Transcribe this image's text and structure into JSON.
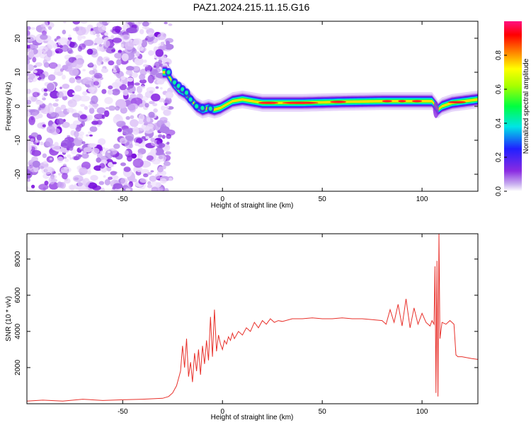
{
  "title": "PAZ1.2024.215.11.15.G16",
  "colors": {
    "snr_line": "#e8302a",
    "axes": "#000000",
    "background": "#ffffff"
  },
  "chart_data": [
    {
      "type": "heatmap",
      "xlabel": "Height of straight line (km)",
      "ylabel": "Frequency (Hz)",
      "xlim": [
        -98,
        128
      ],
      "ylim": [
        -25,
        25
      ],
      "xticks": [
        -50,
        0,
        50,
        100
      ],
      "yticks": [
        -20,
        -10,
        0,
        10,
        20
      ],
      "colorbar": {
        "label": "Normalized spectral amplitude",
        "range": [
          0.0,
          1.0
        ],
        "ticks": [
          0.0,
          0.2,
          0.4,
          0.6,
          0.8
        ],
        "colormap": "rainbow (purple-blue-cyan-green-yellow-red-magenta)"
      },
      "ridge": {
        "heights_km": [
          -28,
          -25,
          -22,
          -19,
          -16,
          -13,
          -10,
          -7,
          -4,
          -1,
          2,
          5,
          10,
          20,
          40,
          60,
          80,
          100,
          105,
          107,
          108,
          110,
          115,
          128
        ],
        "frequency_hz": [
          10,
          7,
          5,
          4,
          2,
          0,
          -1,
          -0.5,
          -1,
          -0.5,
          0.5,
          1.5,
          2,
          1,
          1,
          1.3,
          1.5,
          1.5,
          1.5,
          0,
          -1,
          0,
          1,
          2
        ]
      },
      "noise_region_km": [
        -98,
        -28
      ]
    },
    {
      "type": "line",
      "xlabel": "Height of straight line (km)",
      "ylabel": "SNR (10 * v/v)",
      "xlim": [
        -98,
        128
      ],
      "ylim": [
        0,
        9400
      ],
      "xticks": [
        -50,
        0,
        50,
        100
      ],
      "yticks": [
        2000,
        4000,
        6000,
        8000
      ],
      "series": [
        {
          "x": [
            -98,
            -90,
            -80,
            -70,
            -60,
            -50,
            -40,
            -30,
            -27,
            -25,
            -23,
            -21,
            -20,
            -19,
            -18,
            -17,
            -16,
            -15,
            -14,
            -13,
            -12,
            -11,
            -10,
            -9,
            -8,
            -7,
            -6,
            -5,
            -4,
            -3,
            -2,
            -1,
            0,
            1,
            2,
            3,
            4,
            5,
            6,
            8,
            10,
            12,
            14,
            16,
            18,
            20,
            22,
            24,
            26,
            28,
            30,
            35,
            40,
            45,
            50,
            55,
            60,
            65,
            70,
            75,
            80,
            82,
            84,
            86,
            88,
            90,
            92,
            94,
            96,
            98,
            100,
            102,
            104,
            105,
            106,
            106.5,
            107,
            107.5,
            108,
            108.5,
            109,
            110,
            112,
            114,
            115,
            116,
            117,
            118,
            120,
            125,
            128
          ],
          "y": [
            150,
            200,
            150,
            250,
            180,
            220,
            250,
            300,
            400,
            600,
            1000,
            1800,
            3200,
            2000,
            3600,
            1500,
            2300,
            1200,
            2800,
            1800,
            3000,
            1600,
            3200,
            2200,
            3500,
            2400,
            4800,
            2600,
            5200,
            2900,
            3800,
            3300,
            3000,
            3500,
            3300,
            3700,
            3500,
            3900,
            3600,
            4000,
            3800,
            4200,
            4000,
            4500,
            4200,
            4600,
            4400,
            4700,
            4500,
            4600,
            4550,
            4700,
            4700,
            4750,
            4700,
            4700,
            4750,
            4700,
            4700,
            4650,
            4600,
            4400,
            5200,
            4500,
            5500,
            4300,
            5800,
            4200,
            5300,
            4400,
            5000,
            4500,
            4300,
            4600,
            4400,
            7600,
            600,
            7900,
            400,
            9400,
            3600,
            4500,
            4400,
            4600,
            4500,
            4400,
            2700,
            2600,
            2600,
            2500,
            2450
          ]
        }
      ]
    }
  ]
}
